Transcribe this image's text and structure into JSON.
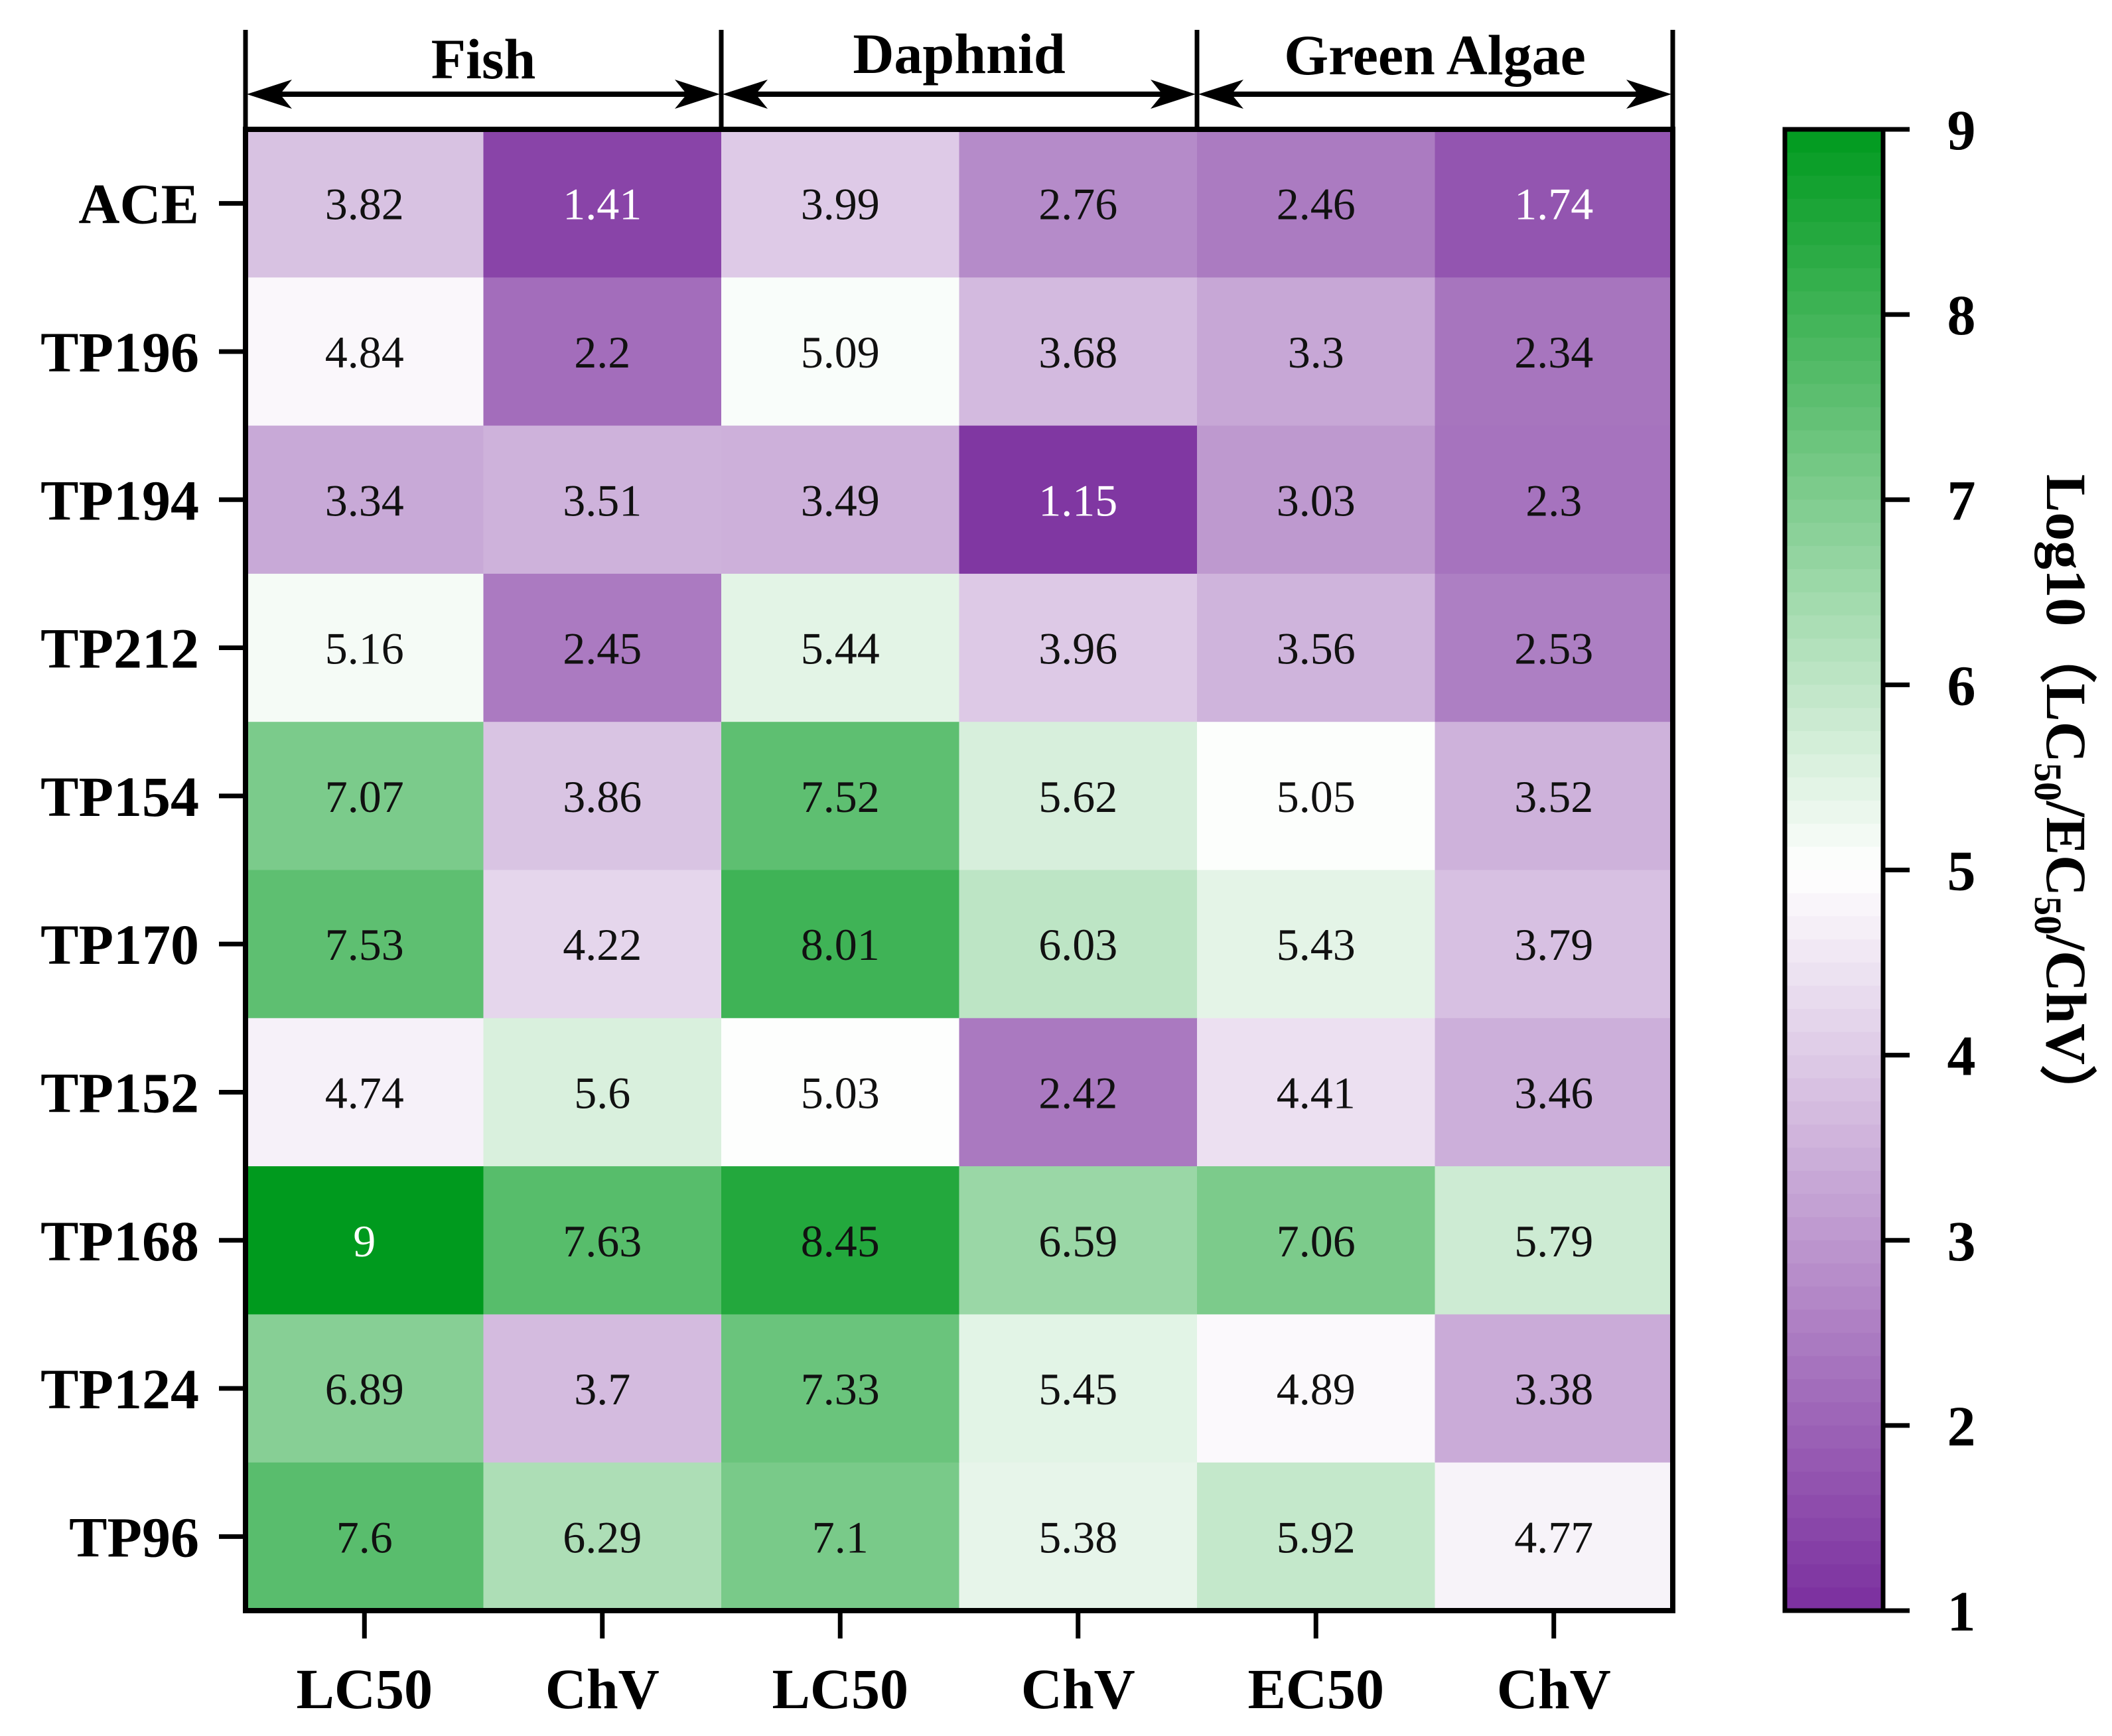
{
  "chart_data": {
    "type": "heatmap",
    "groups": [
      {
        "label": "Fish",
        "columns": [
          0,
          1
        ]
      },
      {
        "label": "Daphnid",
        "columns": [
          2,
          3
        ]
      },
      {
        "label": "Green Algae",
        "columns": [
          4,
          5
        ]
      }
    ],
    "columns": [
      "LC50",
      "ChV",
      "LC50",
      "ChV",
      "EC50",
      "ChV"
    ],
    "rows": [
      "ACE",
      "TP196",
      "TP194",
      "TP212",
      "TP154",
      "TP170",
      "TP152",
      "TP168",
      "TP124",
      "TP96"
    ],
    "values": [
      [
        3.82,
        1.41,
        3.99,
        2.76,
        2.46,
        1.74
      ],
      [
        4.84,
        2.2,
        5.09,
        3.68,
        3.3,
        2.34
      ],
      [
        3.34,
        3.51,
        3.49,
        1.15,
        3.03,
        2.3
      ],
      [
        5.16,
        2.45,
        5.44,
        3.96,
        3.56,
        2.53
      ],
      [
        7.07,
        3.86,
        7.52,
        5.62,
        5.05,
        3.52
      ],
      [
        7.53,
        4.22,
        8.01,
        6.03,
        5.43,
        3.79
      ],
      [
        4.74,
        5.6,
        5.03,
        2.42,
        4.41,
        3.46
      ],
      [
        9,
        7.63,
        8.45,
        6.59,
        7.06,
        5.79
      ],
      [
        6.89,
        3.7,
        7.33,
        5.45,
        4.89,
        3.38
      ],
      [
        7.6,
        6.29,
        7.1,
        5.38,
        5.92,
        4.77
      ]
    ],
    "value_labels": [
      [
        "3.82",
        "1.41",
        "3.99",
        "2.76",
        "2.46",
        "1.74"
      ],
      [
        "4.84",
        "2.2",
        "5.09",
        "3.68",
        "3.3",
        "2.34"
      ],
      [
        "3.34",
        "3.51",
        "3.49",
        "1.15",
        "3.03",
        "2.3"
      ],
      [
        "5.16",
        "2.45",
        "5.44",
        "3.96",
        "3.56",
        "2.53"
      ],
      [
        "7.07",
        "3.86",
        "7.52",
        "5.62",
        "5.05",
        "3.52"
      ],
      [
        "7.53",
        "4.22",
        "8.01",
        "6.03",
        "5.43",
        "3.79"
      ],
      [
        "4.74",
        "5.6",
        "5.03",
        "2.42",
        "4.41",
        "3.46"
      ],
      [
        "9",
        "7.63",
        "8.45",
        "6.59",
        "7.06",
        "5.79"
      ],
      [
        "6.89",
        "3.7",
        "7.33",
        "5.45",
        "4.89",
        "3.38"
      ],
      [
        "7.6",
        "6.29",
        "7.1",
        "5.38",
        "5.92",
        "4.77"
      ]
    ],
    "colorbar": {
      "range": [
        1,
        9
      ],
      "ticks": [
        "1",
        "2",
        "3",
        "4",
        "5",
        "6",
        "7",
        "8",
        "9"
      ],
      "label_prefix": "Log10（",
      "label_parts": [
        "LC",
        "50",
        "/EC",
        "50",
        "/ChV",
        "）"
      ],
      "low_color": "#7b2f9e",
      "mid_color": "#ffffff",
      "high_color": "#009a1e"
    }
  }
}
